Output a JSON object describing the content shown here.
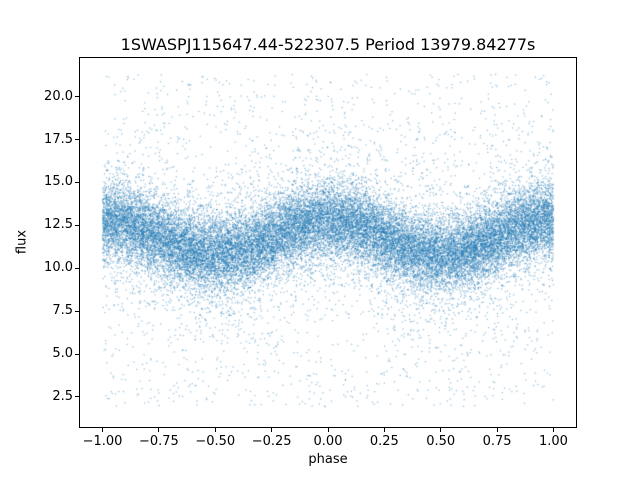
{
  "chart_data": {
    "type": "scatter",
    "title": "1SWASPJ115647.44-522307.5 Period 13979.84277s",
    "xlabel": "phase",
    "ylabel": "flux",
    "xlim": [
      -1.1,
      1.1
    ],
    "ylim": [
      0.75,
      22.25
    ],
    "grid": false,
    "legend": null,
    "marker_color": "#1f77b4",
    "marker_alpha": 0.5,
    "marker_size": 1.2,
    "n_points": 30000,
    "seed": 20240611,
    "xticks": [
      {
        "value": -1.0,
        "label": "−1.00"
      },
      {
        "value": -0.75,
        "label": "−0.75"
      },
      {
        "value": -0.5,
        "label": "−0.50"
      },
      {
        "value": -0.25,
        "label": "−0.25"
      },
      {
        "value": 0.0,
        "label": "0.00"
      },
      {
        "value": 0.25,
        "label": "0.25"
      },
      {
        "value": 0.5,
        "label": "0.50"
      },
      {
        "value": 0.75,
        "label": "0.75"
      },
      {
        "value": 1.0,
        "label": "1.00"
      }
    ],
    "yticks": [
      {
        "value": 2.5,
        "label": "2.5"
      },
      {
        "value": 5.0,
        "label": "5.0"
      },
      {
        "value": 7.5,
        "label": "7.5"
      },
      {
        "value": 10.0,
        "label": "10.0"
      },
      {
        "value": 12.5,
        "label": "12.5"
      },
      {
        "value": 15.0,
        "label": "15.0"
      },
      {
        "value": 17.5,
        "label": "17.5"
      },
      {
        "value": 20.0,
        "label": "20.0"
      }
    ],
    "model": {
      "description": "Phase-folded light curve: dense point cloud whose mean flux varies sinusoidally with phase (maximum ~12.8 at phase 0 and ±1, minimum ~10.8 at phase ±0.5), plus gaussian scatter and sparse outliers spanning roughly flux 1.9 to 21.3",
      "mean_base": 11.8,
      "mean_amplitude": 1.0,
      "trend_phases": [
        -1.0,
        -0.75,
        -0.5,
        -0.25,
        0.0,
        0.25,
        0.5,
        0.75,
        1.0
      ],
      "trend_flux": [
        12.8,
        11.8,
        10.8,
        11.8,
        12.8,
        11.8,
        10.8,
        11.8,
        12.8
      ],
      "noise": {
        "core_frac": 0.78,
        "core_sigma": 1.05,
        "mid_frac": 0.16,
        "mid_sigma": 2.3,
        "outlier_frac": 0.06,
        "outlier_range": [
          1.9,
          21.3
        ]
      }
    }
  }
}
